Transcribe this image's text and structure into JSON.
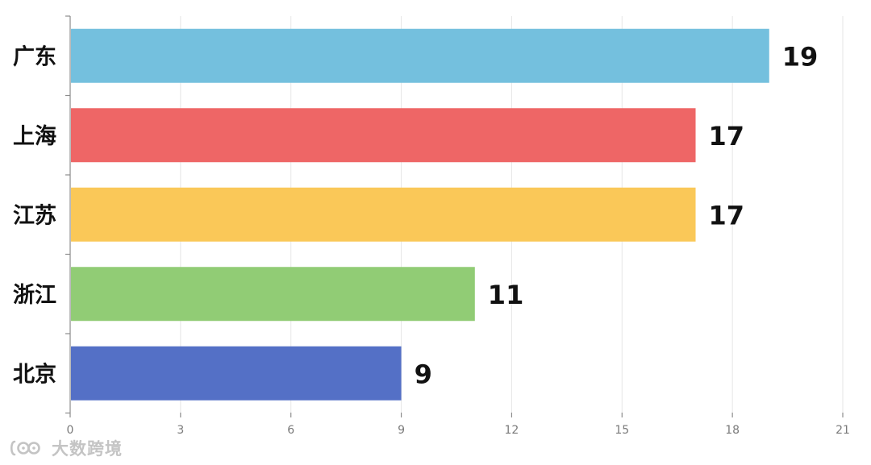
{
  "chart_data": {
    "type": "bar",
    "orientation": "horizontal",
    "categories": [
      "广东",
      "上海",
      "江苏",
      "浙江",
      "北京"
    ],
    "values": [
      19,
      17,
      17,
      11,
      9
    ],
    "colors": [
      "#74c0de",
      "#ee6666",
      "#fac858",
      "#91cc75",
      "#5470c6"
    ],
    "data_labels": [
      "19",
      "17",
      "17",
      "11",
      "9"
    ],
    "xlim": [
      0,
      21
    ],
    "x_ticks": [
      0,
      3,
      6,
      9,
      12,
      15,
      18,
      21
    ],
    "x_tick_labels": [
      "0",
      "3",
      "6",
      "9",
      "12",
      "15",
      "18",
      "21"
    ],
    "grid": "vertical",
    "title": "",
    "xlabel": "",
    "ylabel": ""
  },
  "watermark": {
    "text": "大数跨境",
    "icon": "brand-logo-icon"
  }
}
